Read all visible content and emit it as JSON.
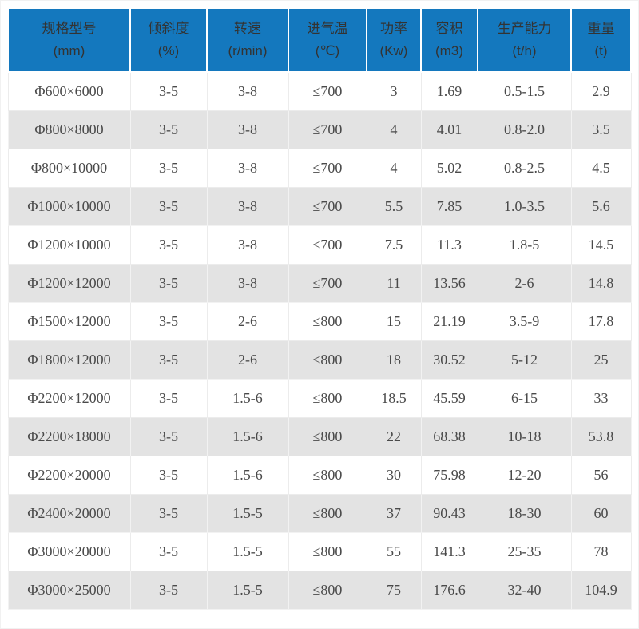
{
  "colors": {
    "header_background": "#1478be",
    "header_text": "#333333",
    "row_background": "#ffffff",
    "row_alt_background": "#e3e3e3",
    "grid_line": "#ececec",
    "cell_text": "#4a4a4a",
    "header_divider": "#ffffff"
  },
  "chart_data": {
    "type": "table",
    "layout": "8 columns, blue header with name and unit on two lines, 14 data rows with alternating white/gray striping",
    "columns": [
      {
        "label": "规格型号",
        "unit": "(mm)"
      },
      {
        "label": "倾斜度",
        "unit": "(%)"
      },
      {
        "label": "转速",
        "unit": "(r/min)"
      },
      {
        "label": "进气温",
        "unit": "(℃)"
      },
      {
        "label": "功率",
        "unit": "(Kw)"
      },
      {
        "label": "容积",
        "unit": "(m3)"
      },
      {
        "label": "生产能力",
        "unit": "(t/h)"
      },
      {
        "label": "重量",
        "unit": "(t)"
      }
    ],
    "rows": [
      [
        "Φ600×6000",
        "3-5",
        "3-8",
        "≤700",
        "3",
        "1.69",
        "0.5-1.5",
        "2.9"
      ],
      [
        "Φ800×8000",
        "3-5",
        "3-8",
        "≤700",
        "4",
        "4.01",
        "0.8-2.0",
        "3.5"
      ],
      [
        "Φ800×10000",
        "3-5",
        "3-8",
        "≤700",
        "4",
        "5.02",
        "0.8-2.5",
        "4.5"
      ],
      [
        "Φ1000×10000",
        "3-5",
        "3-8",
        "≤700",
        "5.5",
        "7.85",
        "1.0-3.5",
        "5.6"
      ],
      [
        "Φ1200×10000",
        "3-5",
        "3-8",
        "≤700",
        "7.5",
        "11.3",
        "1.8-5",
        "14.5"
      ],
      [
        "Φ1200×12000",
        "3-5",
        "3-8",
        "≤700",
        "11",
        "13.56",
        "2-6",
        "14.8"
      ],
      [
        "Φ1500×12000",
        "3-5",
        "2-6",
        "≤800",
        "15",
        "21.19",
        "3.5-9",
        "17.8"
      ],
      [
        "Φ1800×12000",
        "3-5",
        "2-6",
        "≤800",
        "18",
        "30.52",
        "5-12",
        "25"
      ],
      [
        "Φ2200×12000",
        "3-5",
        "1.5-6",
        "≤800",
        "18.5",
        "45.59",
        "6-15",
        "33"
      ],
      [
        "Φ2200×18000",
        "3-5",
        "1.5-6",
        "≤800",
        "22",
        "68.38",
        "10-18",
        "53.8"
      ],
      [
        "Φ2200×20000",
        "3-5",
        "1.5-6",
        "≤800",
        "30",
        "75.98",
        "12-20",
        "56"
      ],
      [
        "Φ2400×20000",
        "3-5",
        "1.5-5",
        "≤800",
        "37",
        "90.43",
        "18-30",
        "60"
      ],
      [
        "Φ3000×20000",
        "3-5",
        "1.5-5",
        "≤800",
        "55",
        "141.3",
        "25-35",
        "78"
      ],
      [
        "Φ3000×25000",
        "3-5",
        "1.5-5",
        "≤800",
        "75",
        "176.6",
        "32-40",
        "104.9"
      ]
    ]
  }
}
